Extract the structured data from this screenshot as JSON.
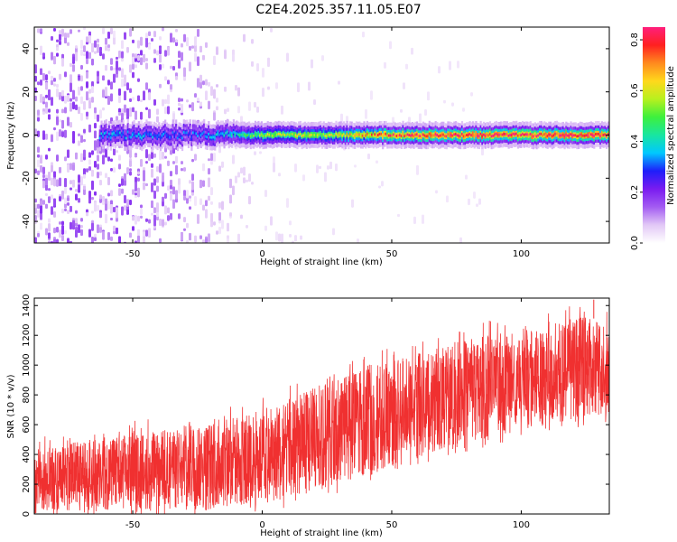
{
  "title": "C2E4.2025.357.11.05.E07",
  "colors": {
    "snr_trace": "#f03030",
    "axis": "#000000",
    "colormap": [
      "#ffffff",
      "#e2c8f6",
      "#a35cf2",
      "#7a1cf0",
      "#1e1efa",
      "#00c8ff",
      "#18e6a0",
      "#3df03d",
      "#b8f01e",
      "#ffd81c",
      "#ff8a1e",
      "#ff2020",
      "#ff1f7c"
    ]
  },
  "chart_data": [
    {
      "type": "heatmap",
      "xlabel": "Height of straight line (km)",
      "ylabel": "Frequency (Hz)",
      "xlim": [
        -88,
        134
      ],
      "ylim": [
        -50,
        50
      ],
      "x_ticks": [
        -50,
        0,
        50,
        100
      ],
      "y_ticks": [
        -40,
        -20,
        0,
        20,
        40
      ],
      "tick_labels_x": [
        "-50",
        "0",
        "50",
        "100"
      ],
      "tick_labels_y": [
        "-40",
        "-20",
        "0",
        "20",
        "40"
      ],
      "colorbar": {
        "label": "Normalized spectral amplitude",
        "range": [
          0.0,
          0.85
        ],
        "ticks": [
          0.0,
          0.2,
          0.4,
          0.6,
          0.8
        ],
        "tick_labels": [
          "0.0",
          "0.2",
          "0.4",
          "0.6",
          "0.8"
        ]
      },
      "ridge": {
        "frequency_hz": 0,
        "x_start": -63,
        "x_end": 134,
        "peak_amplitude": 0.85,
        "profile": [
          {
            "x": -63,
            "amplitude": 0.35
          },
          {
            "x": -50,
            "amplitude": 0.35
          },
          {
            "x": -30,
            "amplitude": 0.3
          },
          {
            "x": -10,
            "amplitude": 0.4
          },
          {
            "x": 0,
            "amplitude": 0.55
          },
          {
            "x": 30,
            "amplitude": 0.6
          },
          {
            "x": 50,
            "amplitude": 0.75
          },
          {
            "x": 70,
            "amplitude": 0.8
          },
          {
            "x": 100,
            "amplitude": 0.8
          },
          {
            "x": 134,
            "amplitude": 0.8
          }
        ]
      },
      "background_noise": [
        {
          "x": -88,
          "level": 0.12
        },
        {
          "x": -50,
          "level": 0.12
        },
        {
          "x": -30,
          "level": 0.08
        },
        {
          "x": -10,
          "level": 0.03
        },
        {
          "x": 0,
          "level": 0.015
        },
        {
          "x": 50,
          "level": 0.005
        },
        {
          "x": 134,
          "level": 0.003
        }
      ]
    },
    {
      "type": "area",
      "xlabel": "Height of straight line (km)",
      "ylabel": "SNR (10 * v/v)",
      "xlim": [
        -88,
        134
      ],
      "ylim": [
        0,
        1450
      ],
      "x_ticks": [
        -50,
        0,
        50,
        100
      ],
      "y_ticks": [
        0,
        200,
        400,
        600,
        800,
        1000,
        1200,
        1400
      ],
      "tick_labels_x": [
        "-50",
        "0",
        "50",
        "100"
      ],
      "tick_labels_y": [
        "0",
        "200",
        "400",
        "600",
        "800",
        "1000",
        "1200",
        "1400"
      ],
      "upper_envelope": [
        {
          "x": -88,
          "y": 430
        },
        {
          "x": -60,
          "y": 520
        },
        {
          "x": -40,
          "y": 560
        },
        {
          "x": -20,
          "y": 640
        },
        {
          "x": 0,
          "y": 700
        },
        {
          "x": 20,
          "y": 850
        },
        {
          "x": 40,
          "y": 980
        },
        {
          "x": 60,
          "y": 1080
        },
        {
          "x": 80,
          "y": 1180
        },
        {
          "x": 100,
          "y": 1260
        },
        {
          "x": 120,
          "y": 1330
        },
        {
          "x": 134,
          "y": 1300
        }
      ],
      "lower_envelope": [
        {
          "x": -88,
          "y": 20
        },
        {
          "x": -40,
          "y": 30
        },
        {
          "x": -20,
          "y": 40
        },
        {
          "x": 0,
          "y": 60
        },
        {
          "x": 20,
          "y": 150
        },
        {
          "x": 40,
          "y": 250
        },
        {
          "x": 60,
          "y": 380
        },
        {
          "x": 80,
          "y": 480
        },
        {
          "x": 100,
          "y": 560
        },
        {
          "x": 120,
          "y": 640
        },
        {
          "x": 134,
          "y": 660
        }
      ],
      "max_spike": {
        "x": 128,
        "y": 1440
      }
    }
  ]
}
